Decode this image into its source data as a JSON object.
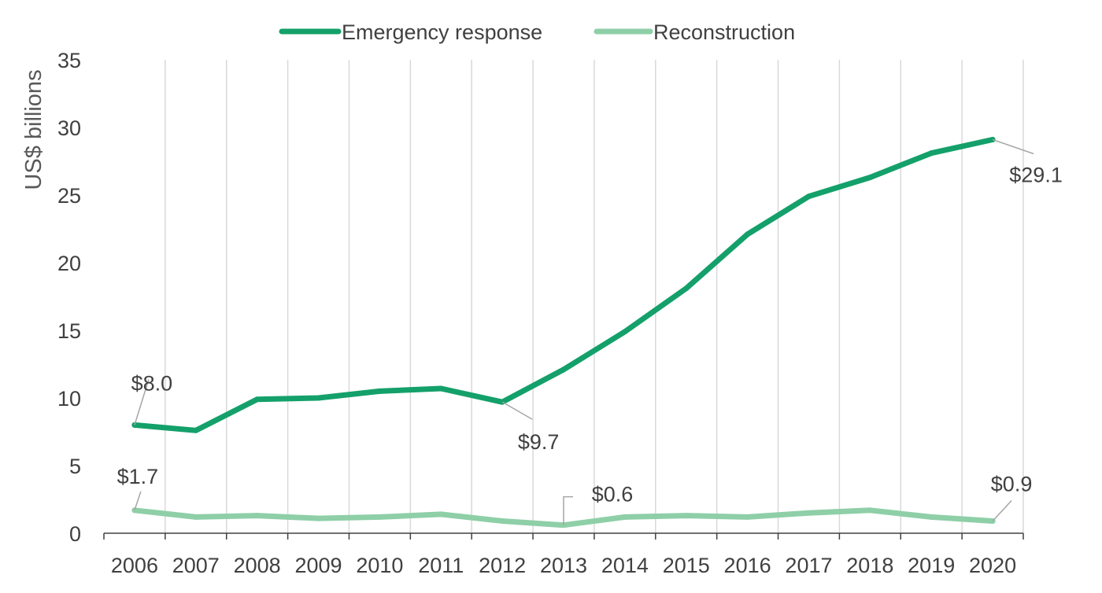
{
  "chart_data": {
    "type": "line",
    "title": "",
    "xlabel": "",
    "ylabel": "US$  billions",
    "ylim": [
      0,
      35
    ],
    "yticks": [
      0,
      5,
      10,
      15,
      20,
      25,
      30,
      35
    ],
    "categories": [
      "2006",
      "2007",
      "2008",
      "2009",
      "2010",
      "2011",
      "2012",
      "2013",
      "2014",
      "2015",
      "2016",
      "2017",
      "2018",
      "2019",
      "2020"
    ],
    "grid": "vertical",
    "legend_position": "top-center",
    "series": [
      {
        "name": "Emergency response",
        "color": "#14a06a",
        "values": [
          8.0,
          7.6,
          9.9,
          10.0,
          10.5,
          10.7,
          9.7,
          12.1,
          14.9,
          18.1,
          22.1,
          24.9,
          26.3,
          28.1,
          29.1
        ]
      },
      {
        "name": "Reconstruction",
        "color": "#8ecfa7",
        "values": [
          1.7,
          1.2,
          1.3,
          1.1,
          1.2,
          1.4,
          0.9,
          0.6,
          1.2,
          1.3,
          1.2,
          1.5,
          1.7,
          1.2,
          0.9
        ]
      }
    ],
    "annotations": [
      {
        "series": 0,
        "index": 0,
        "text": "$8.0"
      },
      {
        "series": 0,
        "index": 6,
        "text": "$9.7"
      },
      {
        "series": 0,
        "index": 14,
        "text": "$29.1"
      },
      {
        "series": 1,
        "index": 0,
        "text": "$1.7"
      },
      {
        "series": 1,
        "index": 7,
        "text": "$0.6"
      },
      {
        "series": 1,
        "index": 14,
        "text": "$0.9"
      }
    ]
  },
  "colors": {
    "grid": "#d9d9d9",
    "axis": "#404040",
    "leader": "#a6a6a6"
  }
}
